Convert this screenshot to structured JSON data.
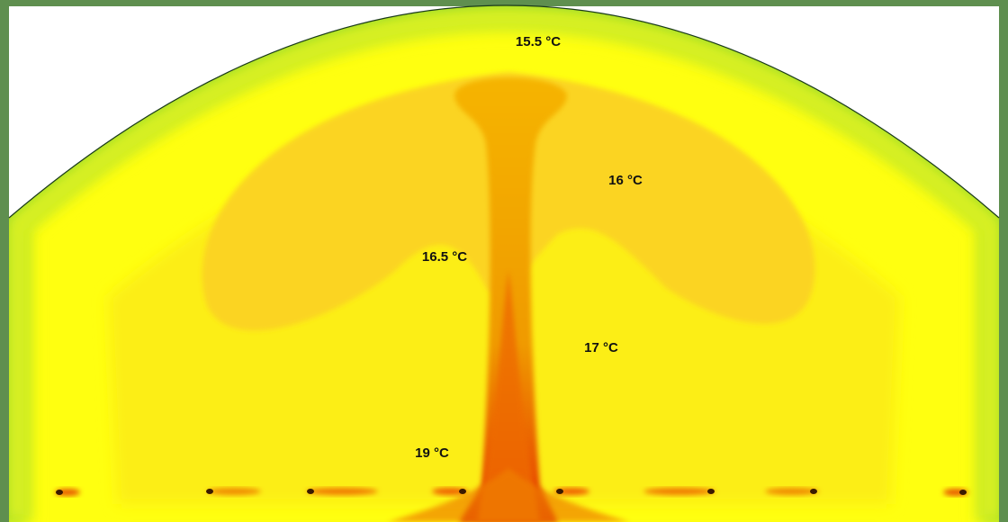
{
  "annotations": [
    "15.5 °C",
    "16 °C",
    "16.5 °C",
    "17 °C",
    "19 °C"
  ]
}
